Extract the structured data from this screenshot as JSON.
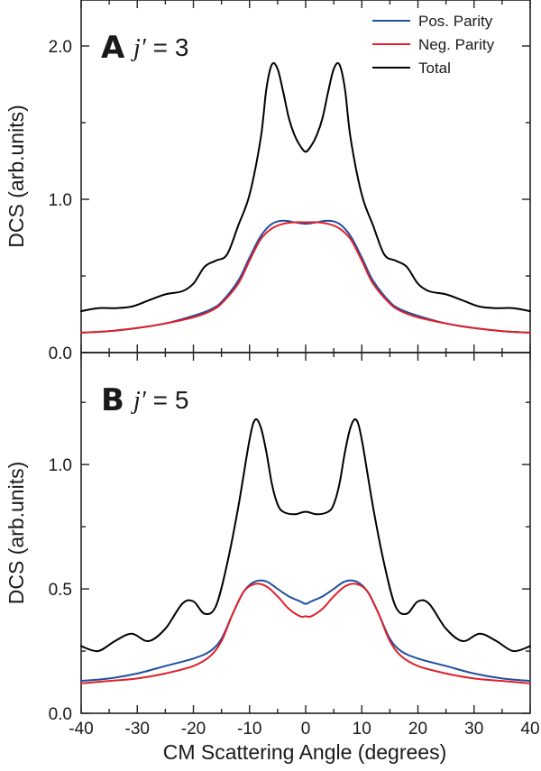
{
  "colors": {
    "pos": "#1f4e9c",
    "neg": "#e0202a",
    "total": "#000000"
  },
  "x_axis": {
    "label": "CM Scattering Angle (degrees)",
    "ticks": [
      -40,
      -30,
      -20,
      -10,
      0,
      10,
      20,
      30,
      40
    ]
  },
  "chart_data": [
    {
      "type": "line",
      "panel_letter": "A",
      "panel_label": "j′ = 3",
      "panel_label_italic": "j′",
      "panel_label_rest": " = 3",
      "ylabel": "DCS (arb.units)",
      "xlim": [
        -40,
        40
      ],
      "ylim": [
        0,
        2.3
      ],
      "yticks": [
        0.0,
        1.0,
        2.0
      ],
      "ytick_labels": [
        "0.0",
        "1.0",
        "2.0"
      ],
      "legend": {
        "placement": "top-right",
        "entries": [
          "Pos. Parity",
          "Neg. Parity",
          "Total"
        ]
      },
      "series": [
        {
          "name": "Pos. Parity",
          "color_key": "pos",
          "x": [
            -40,
            -35,
            -30,
            -25,
            -20,
            -17,
            -15,
            -12,
            -10,
            -8,
            -6,
            -4,
            -2,
            0,
            2,
            4,
            6,
            8,
            10,
            12,
            15,
            17,
            20,
            25,
            30,
            35,
            40
          ],
          "y": [
            0.13,
            0.14,
            0.16,
            0.19,
            0.24,
            0.28,
            0.33,
            0.47,
            0.62,
            0.76,
            0.84,
            0.86,
            0.85,
            0.84,
            0.85,
            0.86,
            0.84,
            0.76,
            0.62,
            0.47,
            0.33,
            0.28,
            0.24,
            0.19,
            0.16,
            0.14,
            0.13
          ]
        },
        {
          "name": "Neg. Parity",
          "color_key": "neg",
          "x": [
            -40,
            -35,
            -30,
            -25,
            -20,
            -17,
            -15,
            -12,
            -10,
            -8,
            -6,
            -4,
            -2,
            0,
            2,
            4,
            6,
            8,
            10,
            12,
            15,
            17,
            20,
            25,
            30,
            35,
            40
          ],
          "y": [
            0.13,
            0.14,
            0.16,
            0.19,
            0.23,
            0.27,
            0.32,
            0.45,
            0.6,
            0.74,
            0.81,
            0.84,
            0.85,
            0.85,
            0.85,
            0.84,
            0.81,
            0.74,
            0.6,
            0.45,
            0.32,
            0.27,
            0.23,
            0.19,
            0.16,
            0.14,
            0.13
          ]
        },
        {
          "name": "Total",
          "color_key": "total",
          "x": [
            -40,
            -37,
            -34,
            -31,
            -28,
            -25,
            -22,
            -20,
            -18,
            -16,
            -14,
            -12,
            -10,
            -8,
            -7,
            -6,
            -5,
            -4,
            -3,
            -2,
            -1,
            0,
            1,
            2,
            3,
            4,
            5,
            6,
            7,
            8,
            10,
            12,
            14,
            16,
            18,
            20,
            22,
            25,
            28,
            31,
            34,
            37,
            40
          ],
          "y": [
            0.27,
            0.29,
            0.29,
            0.3,
            0.34,
            0.38,
            0.4,
            0.45,
            0.56,
            0.6,
            0.64,
            0.83,
            1.03,
            1.4,
            1.72,
            1.88,
            1.85,
            1.7,
            1.53,
            1.42,
            1.35,
            1.31,
            1.35,
            1.42,
            1.53,
            1.7,
            1.85,
            1.88,
            1.72,
            1.4,
            1.03,
            0.83,
            0.64,
            0.6,
            0.56,
            0.45,
            0.4,
            0.38,
            0.34,
            0.3,
            0.29,
            0.29,
            0.27
          ]
        }
      ]
    },
    {
      "type": "line",
      "panel_letter": "B",
      "panel_label": "j′ = 5",
      "panel_label_italic": "j′",
      "panel_label_rest": " = 5",
      "ylabel": "DCS (arb.units)",
      "xlim": [
        -40,
        40
      ],
      "ylim": [
        0,
        1.45
      ],
      "yticks": [
        0.0,
        0.5,
        1.0
      ],
      "ytick_labels": [
        "0.0",
        "0.5",
        "1.0"
      ],
      "series": [
        {
          "name": "Pos. Parity",
          "color_key": "pos",
          "x": [
            -40,
            -35,
            -30,
            -25,
            -20,
            -17,
            -15,
            -13,
            -11,
            -9,
            -7,
            -5,
            -3,
            -1,
            0,
            1,
            3,
            5,
            7,
            9,
            11,
            13,
            15,
            17,
            20,
            25,
            30,
            35,
            40
          ],
          "y": [
            0.13,
            0.14,
            0.16,
            0.19,
            0.22,
            0.25,
            0.3,
            0.4,
            0.49,
            0.53,
            0.53,
            0.5,
            0.47,
            0.45,
            0.44,
            0.45,
            0.47,
            0.5,
            0.53,
            0.53,
            0.49,
            0.4,
            0.3,
            0.25,
            0.22,
            0.19,
            0.16,
            0.14,
            0.13
          ]
        },
        {
          "name": "Neg. Parity",
          "color_key": "neg",
          "x": [
            -40,
            -35,
            -30,
            -25,
            -20,
            -17,
            -15,
            -13,
            -11,
            -9,
            -7,
            -5,
            -3,
            -1,
            0,
            1,
            3,
            5,
            7,
            9,
            11,
            13,
            15,
            17,
            20,
            25,
            30,
            35,
            40
          ],
          "y": [
            0.12,
            0.13,
            0.14,
            0.16,
            0.19,
            0.23,
            0.29,
            0.4,
            0.49,
            0.52,
            0.51,
            0.47,
            0.42,
            0.39,
            0.39,
            0.39,
            0.42,
            0.47,
            0.51,
            0.52,
            0.49,
            0.4,
            0.29,
            0.23,
            0.19,
            0.16,
            0.14,
            0.13,
            0.12
          ]
        },
        {
          "name": "Total",
          "color_key": "total",
          "x": [
            -40,
            -37,
            -34,
            -31,
            -28,
            -25,
            -22,
            -20,
            -18,
            -16,
            -14,
            -12,
            -10,
            -9,
            -8,
            -7,
            -6,
            -5,
            -4,
            -2,
            0,
            2,
            4,
            5,
            6,
            7,
            8,
            9,
            10,
            12,
            14,
            16,
            18,
            20,
            22,
            25,
            28,
            31,
            34,
            37,
            40
          ],
          "y": [
            0.27,
            0.25,
            0.29,
            0.32,
            0.29,
            0.34,
            0.44,
            0.45,
            0.4,
            0.43,
            0.6,
            0.83,
            1.1,
            1.18,
            1.15,
            1.05,
            0.92,
            0.84,
            0.81,
            0.8,
            0.81,
            0.8,
            0.81,
            0.84,
            0.92,
            1.05,
            1.15,
            1.18,
            1.1,
            0.83,
            0.6,
            0.43,
            0.4,
            0.45,
            0.44,
            0.34,
            0.29,
            0.32,
            0.29,
            0.25,
            0.27
          ]
        }
      ]
    }
  ]
}
